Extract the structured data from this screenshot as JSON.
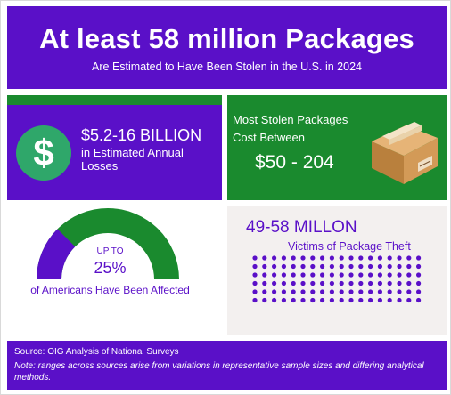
{
  "header": {
    "title": "At least 58 million Packages",
    "subtitle": "Are Estimated to Have Been Stolen in the U.S. in 2024"
  },
  "losses": {
    "icon": "dollar-coin-icon",
    "big": "$5.2-16 BILLION",
    "small": "in Estimated Annual Losses"
  },
  "stolen": {
    "line1": "Most Stolen Packages",
    "line2": "Cost Between",
    "price": "$50 - 204",
    "icon": "cardboard-box-icon"
  },
  "affected": {
    "upto": "UP TO",
    "pct": "25%",
    "pct_value": 25,
    "label": "of Americans Have Been Affected"
  },
  "victims": {
    "big": "49-58 MILLON",
    "small": "Victims of Package Theft"
  },
  "footer": {
    "source": "Source: OIG Analysis of National Surveys",
    "note": "Note: ranges across sources arise from variations in representative sample sizes and differing analytical methods."
  },
  "colors": {
    "purple": "#5a10c8",
    "green": "#1a8a2e",
    "coin": "#2fa76a",
    "panel_bg": "#f3f0ef"
  }
}
